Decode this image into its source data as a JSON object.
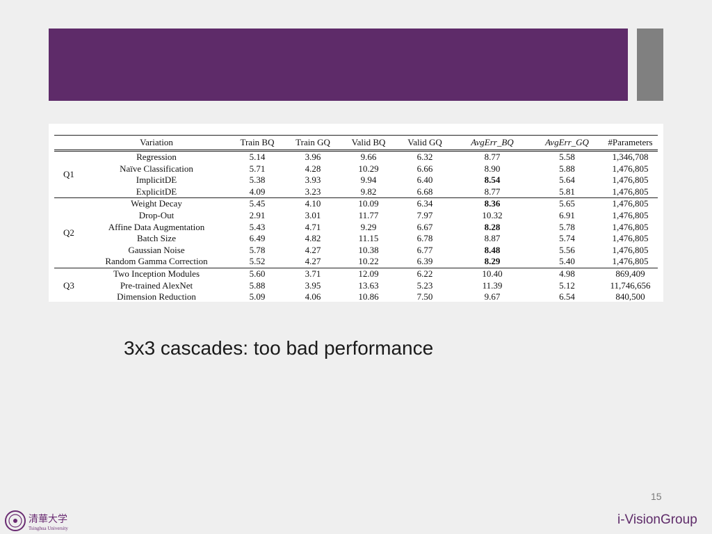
{
  "slide": {
    "subtitle": "3x3 cascades: too bad performance",
    "page_number": "15",
    "brand": "i-VisionGroup",
    "logo_text": "清華大学 Tsinghua University",
    "colors": {
      "header": "#5e2b69",
      "accent": "#808080",
      "background": "#efefef"
    }
  },
  "table": {
    "headers": [
      "",
      "Variation",
      "Train BQ",
      "Train GQ",
      "Valid BQ",
      "Valid GQ",
      "AvgErr_BQ",
      "AvgErr_GQ",
      "#Parameters"
    ],
    "groups": [
      {
        "label": "Q1",
        "rows": [
          {
            "variation": "Regression",
            "train_bq": "5.14",
            "train_gq": "3.96",
            "valid_bq": "9.66",
            "valid_gq": "6.32",
            "avg_bq": "8.77",
            "avg_gq": "5.58",
            "params": "1,346,708"
          },
          {
            "variation": "Naïve Classification",
            "train_bq": "5.71",
            "train_gq": "4.28",
            "valid_bq": "10.29",
            "valid_gq": "6.66",
            "avg_bq": "8.90",
            "avg_gq": "5.88",
            "params": "1,476,805"
          },
          {
            "variation": "ImplicitDE",
            "train_bq": "5.38",
            "train_gq": "3.93",
            "valid_bq": "9.94",
            "valid_gq": "6.40",
            "avg_bq": "8.54",
            "avg_gq": "5.64",
            "params": "1,476,805"
          },
          {
            "variation": "ExplicitDE",
            "train_bq": "4.09",
            "train_gq": "3.23",
            "valid_bq": "9.82",
            "valid_gq": "6.68",
            "avg_bq": "8.77",
            "avg_gq": "5.81",
            "params": "1,476,805"
          }
        ]
      },
      {
        "label": "Q2",
        "rows": [
          {
            "variation": "Weight Decay",
            "train_bq": "5.45",
            "train_gq": "4.10",
            "valid_bq": "10.09",
            "valid_gq": "6.34",
            "avg_bq": "8.36",
            "avg_gq": "5.65",
            "params": "1,476,805"
          },
          {
            "variation": "Drop-Out",
            "train_bq": "2.91",
            "train_gq": "3.01",
            "valid_bq": "11.77",
            "valid_gq": "7.97",
            "avg_bq": "10.32",
            "avg_gq": "6.91",
            "params": "1,476,805"
          },
          {
            "variation": "Affine Data Augmentation",
            "train_bq": "5.43",
            "train_gq": "4.71",
            "valid_bq": "9.29",
            "valid_gq": "6.67",
            "avg_bq": "8.28",
            "avg_gq": "5.78",
            "params": "1,476,805"
          },
          {
            "variation": "Batch Size",
            "train_bq": "6.49",
            "train_gq": "4.82",
            "valid_bq": "11.15",
            "valid_gq": "6.78",
            "avg_bq": "8.87",
            "avg_gq": "5.74",
            "params": "1,476,805"
          },
          {
            "variation": "Gaussian Noise",
            "train_bq": "5.78",
            "train_gq": "4.27",
            "valid_bq": "10.38",
            "valid_gq": "6.77",
            "avg_bq": "8.48",
            "avg_gq": "5.56",
            "params": "1,476,805"
          },
          {
            "variation": "Random Gamma Correction",
            "train_bq": "5.52",
            "train_gq": "4.27",
            "valid_bq": "10.22",
            "valid_gq": "6.39",
            "avg_bq": "8.29",
            "avg_gq": "5.40",
            "params": "1,476,805"
          }
        ]
      },
      {
        "label": "Q3",
        "rows": [
          {
            "variation": "Two Inception Modules",
            "train_bq": "5.60",
            "train_gq": "3.71",
            "valid_bq": "12.09",
            "valid_gq": "6.22",
            "avg_bq": "10.40",
            "avg_gq": "4.98",
            "params": "869,409"
          },
          {
            "variation": "Pre-trained AlexNet",
            "train_bq": "5.88",
            "train_gq": "3.95",
            "valid_bq": "13.63",
            "valid_gq": "5.23",
            "avg_bq": "11.39",
            "avg_gq": "5.12",
            "params": "11,746,656"
          },
          {
            "variation": "Dimension Reduction",
            "train_bq": "5.09",
            "train_gq": "4.06",
            "valid_bq": "10.86",
            "valid_gq": "7.50",
            "avg_bq": "9.67",
            "avg_gq": "6.54",
            "params": "840,500"
          }
        ]
      }
    ]
  }
}
